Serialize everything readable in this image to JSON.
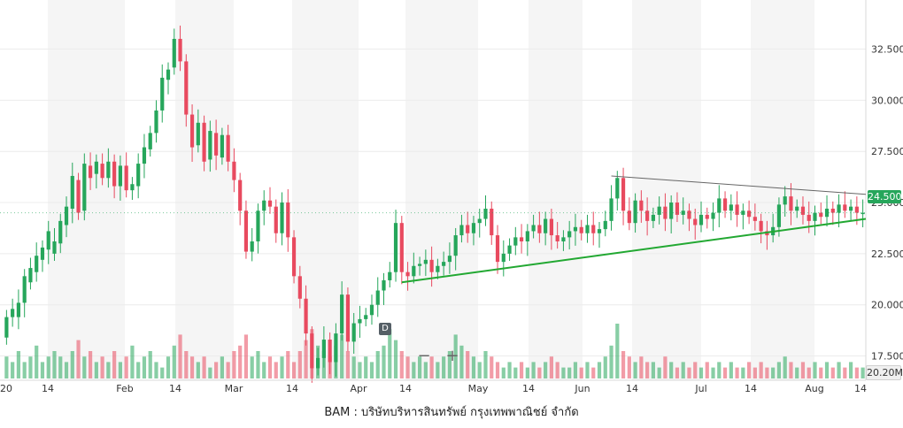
{
  "caption": "BAM : บริษัทบริหารสินทรัพย์ กรุงเทพพาณิชย์ จำกัด",
  "last_price_label": "24.500",
  "volume_label": "20.20M",
  "marker_label": "D",
  "zoom": {
    "minus": "−",
    "plus": "+"
  },
  "colors": {
    "up": "#26a65b",
    "down": "#e84a5f",
    "trend_up": "#22a832",
    "trend_down": "#666666"
  },
  "chart_data": {
    "type": "candlestick",
    "title": "",
    "xlabel": "",
    "ylabel": "",
    "ylim": [
      16.4,
      34.9
    ],
    "price_ticks": [
      "17.500",
      "20.000",
      "22.500",
      "25.000",
      "27.500",
      "30.000",
      "32.500"
    ],
    "price_tick_values": [
      17.5,
      20.0,
      22.5,
      25.0,
      27.5,
      30.0,
      32.5
    ],
    "x_ticks": [
      "20",
      "14",
      "Feb",
      "14",
      "Mar",
      "14",
      "Apr",
      "14",
      "May",
      "14",
      "Jun",
      "14",
      "Jul",
      "14",
      "Aug",
      "14"
    ],
    "grid": true,
    "candles": [
      [
        18.4,
        19.4
      ],
      [
        19.4,
        19.8
      ],
      [
        19.4,
        20.1
      ],
      [
        20.1,
        21.4
      ],
      [
        21.1,
        21.8
      ],
      [
        21.6,
        22.4
      ],
      [
        22.2,
        22.8
      ],
      [
        22.7,
        23.6
      ],
      [
        22.5,
        23.1
      ],
      [
        23.0,
        24.1
      ],
      [
        23.9,
        24.8
      ],
      [
        24.7,
        26.3
      ],
      [
        26.1,
        24.5
      ],
      [
        24.6,
        26.9
      ],
      [
        26.8,
        26.2
      ],
      [
        26.4,
        27.0
      ],
      [
        26.9,
        26.2
      ],
      [
        26.2,
        27.0
      ],
      [
        27.0,
        25.8
      ],
      [
        25.8,
        26.8
      ],
      [
        26.8,
        25.6
      ],
      [
        25.6,
        25.9
      ],
      [
        25.8,
        26.9
      ],
      [
        26.9,
        27.7
      ],
      [
        27.6,
        28.4
      ],
      [
        28.4,
        29.5
      ],
      [
        29.5,
        31.1
      ],
      [
        31.0,
        31.5
      ],
      [
        31.6,
        33.0
      ],
      [
        33.0,
        31.9
      ],
      [
        31.9,
        29.3
      ],
      [
        29.3,
        27.7
      ],
      [
        27.8,
        28.9
      ],
      [
        28.9,
        27.0
      ],
      [
        27.1,
        28.5
      ],
      [
        28.4,
        27.3
      ],
      [
        27.2,
        28.3
      ],
      [
        28.3,
        27.0
      ],
      [
        27.0,
        26.1
      ],
      [
        26.1,
        24.6
      ],
      [
        24.6,
        22.6
      ],
      [
        22.6,
        23.1
      ],
      [
        23.1,
        24.6
      ],
      [
        24.6,
        25.1
      ],
      [
        25.1,
        24.8
      ],
      [
        24.8,
        23.5
      ],
      [
        23.5,
        25.0
      ],
      [
        25.0,
        23.3
      ],
      [
        23.3,
        21.4
      ],
      [
        21.4,
        20.3
      ],
      [
        20.3,
        18.6
      ],
      [
        18.6,
        16.9
      ],
      [
        16.9,
        17.4
      ],
      [
        17.4,
        18.3
      ],
      [
        18.3,
        17.2
      ],
      [
        17.2,
        18.6
      ],
      [
        18.6,
        20.5
      ],
      [
        20.5,
        18.2
      ],
      [
        18.2,
        19.1
      ],
      [
        19.1,
        19.3
      ],
      [
        19.3,
        19.5
      ],
      [
        19.5,
        20.0
      ],
      [
        20.0,
        20.7
      ],
      [
        20.7,
        21.2
      ],
      [
        21.2,
        21.6
      ],
      [
        21.6,
        24.0
      ],
      [
        24.0,
        21.6
      ],
      [
        21.6,
        21.4
      ],
      [
        21.4,
        21.9
      ],
      [
        21.9,
        22.0
      ],
      [
        22.0,
        22.2
      ],
      [
        22.2,
        21.6
      ],
      [
        21.6,
        21.9
      ],
      [
        21.9,
        22.1
      ],
      [
        22.1,
        22.4
      ],
      [
        22.4,
        23.4
      ],
      [
        23.4,
        23.9
      ],
      [
        23.9,
        23.5
      ],
      [
        23.5,
        24.0
      ],
      [
        24.0,
        24.2
      ],
      [
        24.2,
        24.7
      ],
      [
        24.7,
        23.4
      ],
      [
        23.4,
        22.1
      ],
      [
        22.1,
        22.5
      ],
      [
        22.5,
        22.9
      ],
      [
        22.9,
        23.3
      ],
      [
        23.3,
        23.1
      ],
      [
        23.1,
        23.6
      ],
      [
        23.6,
        23.9
      ],
      [
        23.9,
        23.5
      ],
      [
        23.5,
        24.2
      ],
      [
        24.2,
        23.4
      ],
      [
        23.4,
        23.1
      ],
      [
        23.1,
        23.3
      ],
      [
        23.3,
        23.6
      ],
      [
        23.6,
        23.8
      ],
      [
        23.8,
        23.5
      ],
      [
        23.5,
        23.9
      ],
      [
        23.9,
        23.5
      ],
      [
        23.5,
        23.7
      ],
      [
        23.7,
        24.1
      ],
      [
        24.1,
        25.2
      ],
      [
        25.2,
        26.2
      ],
      [
        26.2,
        24.6
      ],
      [
        24.6,
        24.0
      ],
      [
        24.0,
        25.1
      ],
      [
        25.1,
        24.6
      ],
      [
        24.6,
        24.1
      ],
      [
        24.1,
        24.4
      ],
      [
        24.4,
        24.8
      ],
      [
        24.8,
        24.2
      ],
      [
        24.2,
        25.0
      ],
      [
        25.0,
        24.4
      ],
      [
        24.4,
        24.6
      ],
      [
        24.6,
        24.2
      ],
      [
        24.2,
        23.9
      ],
      [
        23.9,
        24.4
      ],
      [
        24.4,
        24.2
      ],
      [
        24.2,
        24.5
      ],
      [
        24.5,
        25.2
      ],
      [
        25.2,
        24.6
      ],
      [
        24.6,
        24.9
      ],
      [
        24.9,
        24.4
      ],
      [
        24.4,
        24.6
      ],
      [
        24.6,
        24.3
      ],
      [
        24.3,
        24.1
      ],
      [
        24.1,
        23.6
      ],
      [
        23.6,
        23.4
      ],
      [
        23.4,
        23.8
      ],
      [
        23.8,
        24.9
      ],
      [
        24.9,
        25.3
      ],
      [
        25.3,
        24.6
      ],
      [
        24.6,
        24.8
      ],
      [
        24.8,
        24.4
      ],
      [
        24.4,
        24.1
      ],
      [
        24.1,
        24.5
      ],
      [
        24.5,
        24.3
      ],
      [
        24.3,
        24.7
      ],
      [
        24.7,
        24.5
      ],
      [
        24.5,
        24.9
      ],
      [
        24.9,
        24.6
      ],
      [
        24.6,
        24.8
      ],
      [
        24.8,
        24.5
      ],
      [
        24.5,
        24.5
      ]
    ],
    "volume": [
      0.4,
      0.3,
      0.5,
      0.3,
      0.4,
      0.6,
      0.3,
      0.4,
      0.5,
      0.4,
      0.3,
      0.5,
      0.7,
      0.4,
      0.5,
      0.3,
      0.4,
      0.3,
      0.5,
      0.3,
      0.4,
      0.6,
      0.3,
      0.4,
      0.5,
      0.3,
      0.2,
      0.4,
      0.6,
      0.8,
      0.5,
      0.4,
      0.3,
      0.4,
      0.2,
      0.3,
      0.4,
      0.3,
      0.5,
      0.6,
      0.8,
      0.4,
      0.5,
      0.3,
      0.4,
      0.3,
      0.4,
      0.5,
      0.3,
      0.5,
      0.7,
      0.9,
      0.6,
      0.5,
      0.4,
      0.6,
      0.8,
      0.5,
      0.4,
      0.3,
      0.4,
      0.3,
      0.5,
      0.6,
      0.9,
      0.7,
      0.5,
      0.4,
      0.3,
      0.4,
      0.3,
      0.4,
      0.3,
      0.4,
      0.5,
      0.8,
      0.6,
      0.5,
      0.4,
      0.3,
      0.5,
      0.4,
      0.3,
      0.2,
      0.3,
      0.2,
      0.3,
      0.2,
      0.3,
      0.2,
      0.3,
      0.4,
      0.3,
      0.2,
      0.2,
      0.3,
      0.2,
      0.3,
      0.2,
      0.3,
      0.4,
      0.6,
      1.0,
      0.5,
      0.4,
      0.3,
      0.4,
      0.3,
      0.3,
      0.2,
      0.4,
      0.3,
      0.2,
      0.3,
      0.2,
      0.3,
      0.2,
      0.3,
      0.2,
      0.3,
      0.2,
      0.3,
      0.2,
      0.2,
      0.3,
      0.2,
      0.3,
      0.2,
      0.2,
      0.3,
      0.4,
      0.3,
      0.2,
      0.3,
      0.2,
      0.3,
      0.2,
      0.3,
      0.2,
      0.3,
      0.2,
      0.3,
      0.2,
      0.2
    ],
    "trendlines": [
      {
        "from": [
          66,
          21.1
        ],
        "to": [
          145,
          24.2
        ],
        "color": "#22a832"
      },
      {
        "from": [
          101,
          26.3
        ],
        "to": [
          145,
          25.4
        ],
        "color": "#666666"
      }
    ]
  }
}
